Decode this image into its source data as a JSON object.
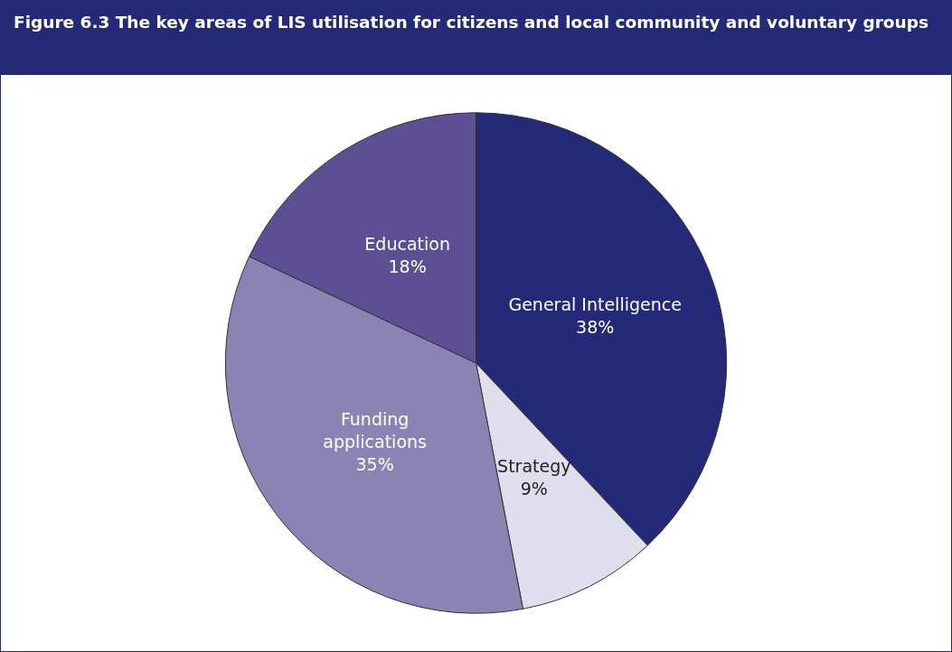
{
  "chart_data": {
    "type": "pie",
    "title": "Figure 6.3 The key areas of LIS utilisation for citizens and local community and voluntary groups",
    "categories": [
      "General Intelligence",
      "Strategy",
      "Funding\napplications",
      "Education"
    ],
    "values": [
      38,
      9,
      35,
      18
    ],
    "colors": [
      "#252a78",
      "#e0dded",
      "#8b83b4",
      "#5c4f93"
    ],
    "value_labels": [
      "38%",
      "9%",
      "35%",
      "18%"
    ],
    "legend": false
  }
}
